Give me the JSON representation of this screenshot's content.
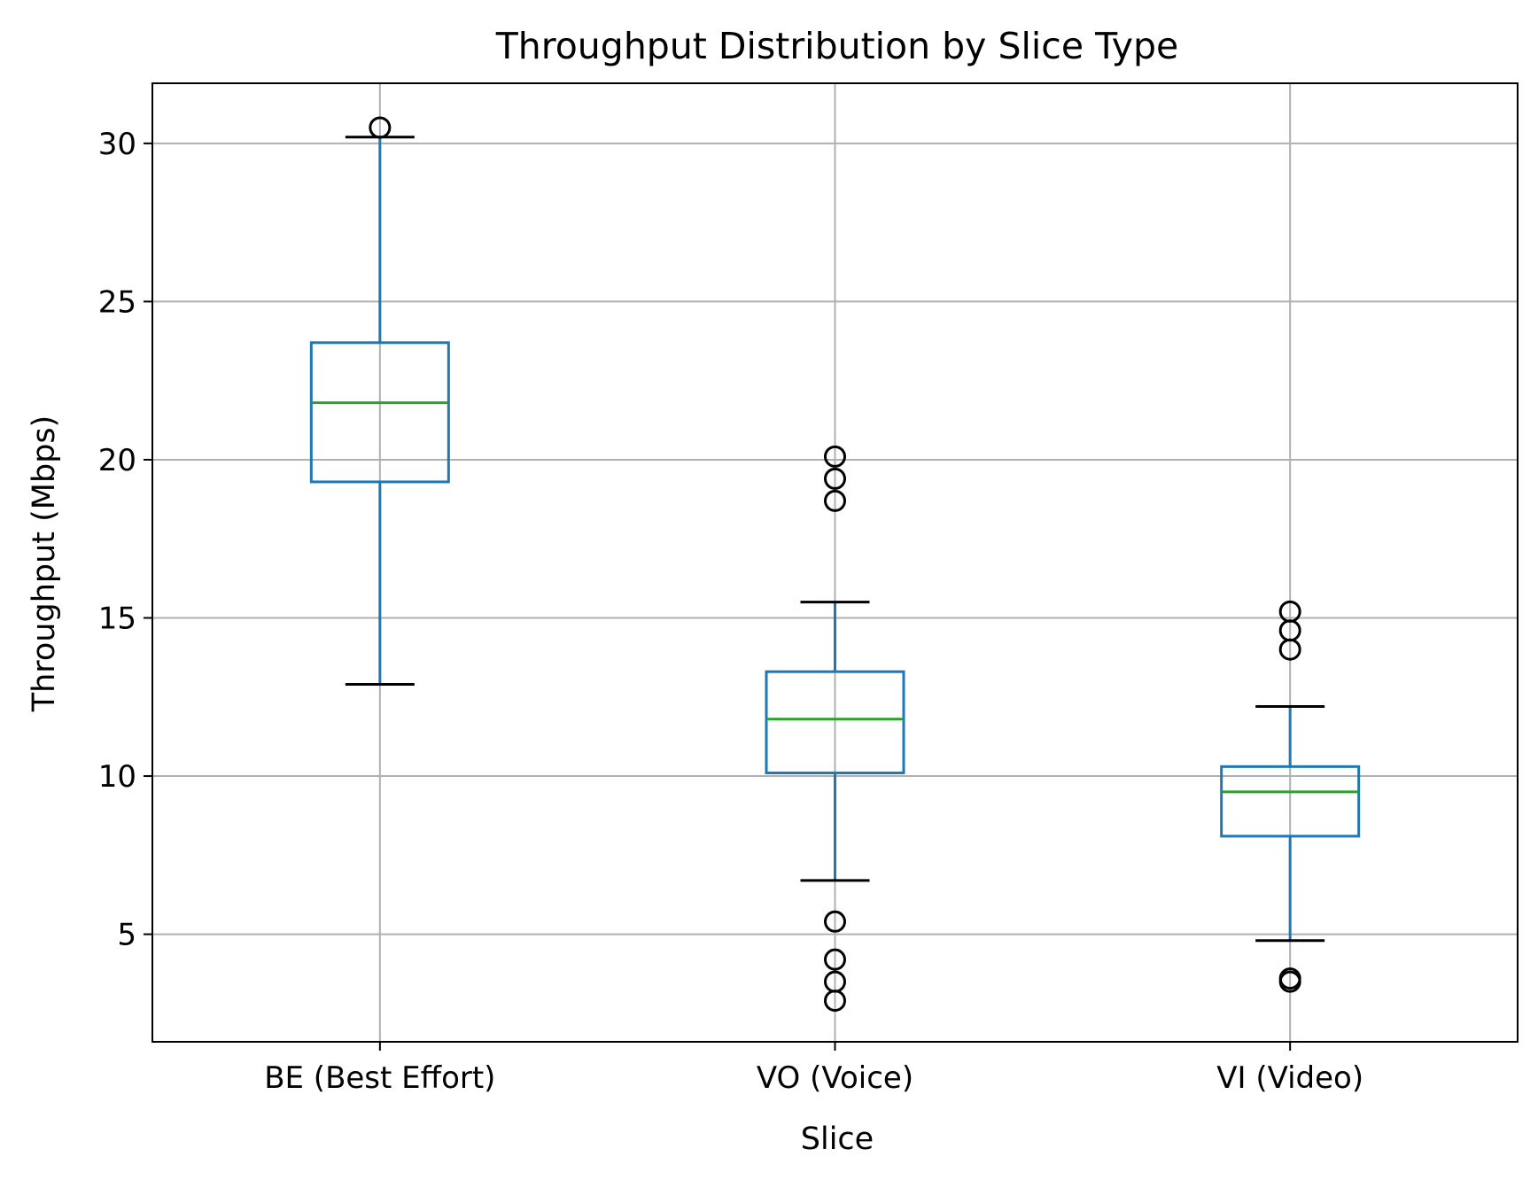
{
  "chart_data": {
    "type": "box",
    "title": "Throughput Distribution by Slice Type",
    "xlabel": "Slice",
    "ylabel": "Throughput (Mbps)",
    "ylim": [
      1.6,
      31.9
    ],
    "yticks": [
      5,
      10,
      15,
      20,
      25,
      30
    ],
    "ytick_labels": [
      "5",
      "10",
      "15",
      "20",
      "25",
      "30"
    ],
    "grid": true,
    "categories": [
      "BE (Best Effort)",
      "VO (Voice)",
      "VI (Video)"
    ],
    "boxes": [
      {
        "category": "BE (Best Effort)",
        "whisker_low": 12.9,
        "q1": 19.3,
        "median": 21.8,
        "q3": 23.7,
        "whisker_high": 30.2,
        "outliers": [
          30.5
        ]
      },
      {
        "category": "VO (Voice)",
        "whisker_low": 6.7,
        "q1": 10.1,
        "median": 11.8,
        "q3": 13.3,
        "whisker_high": 15.5,
        "outliers": [
          20.1,
          19.4,
          18.7,
          5.4,
          4.2,
          3.5,
          2.9
        ]
      },
      {
        "category": "VI (Video)",
        "whisker_low": 4.8,
        "q1": 8.1,
        "median": 9.5,
        "q3": 10.3,
        "whisker_high": 12.2,
        "outliers": [
          15.2,
          14.6,
          14.0,
          3.6,
          3.5
        ]
      }
    ],
    "colors": {
      "box": "#1f77b4",
      "median": "#2ca02c",
      "caps": "#000000",
      "outliers": "#000000",
      "grid": "#b0b0b0"
    }
  }
}
